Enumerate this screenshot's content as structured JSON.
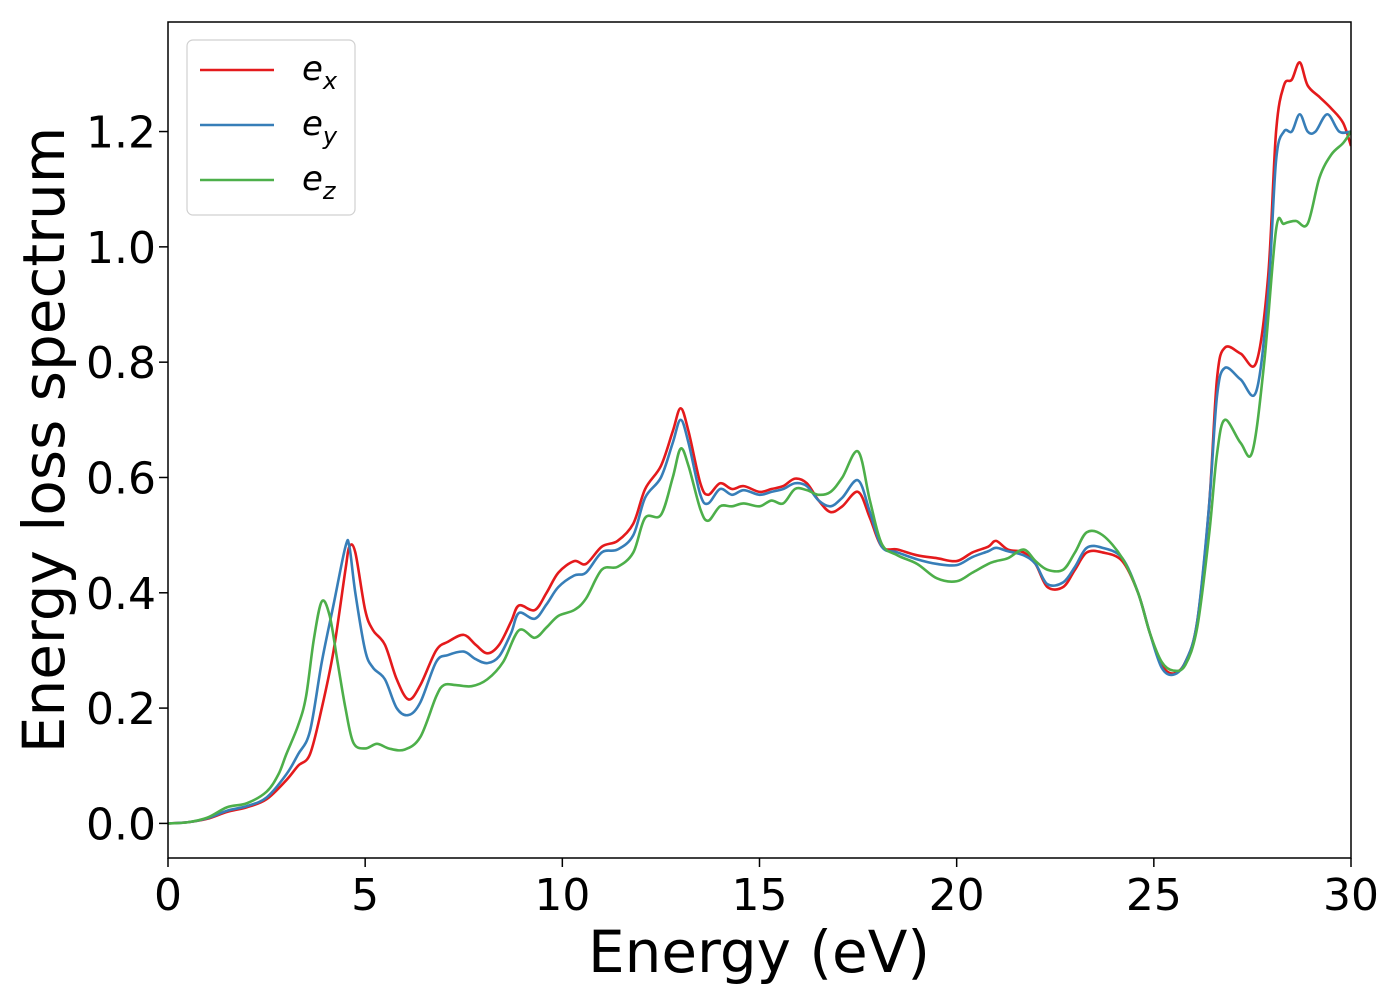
{
  "chart_data": {
    "type": "line",
    "xlabel": "Energy (eV)",
    "ylabel": "Energy loss spectrum",
    "xlim": [
      0,
      30
    ],
    "ylim": [
      -0.06,
      1.39
    ],
    "xticks": [
      0,
      5,
      10,
      15,
      20,
      25,
      30
    ],
    "xtick_labels": [
      "0",
      "5",
      "10",
      "15",
      "20",
      "25",
      "30"
    ],
    "yticks": [
      0.0,
      0.2,
      0.4,
      0.6,
      0.8,
      1.0,
      1.2
    ],
    "ytick_labels": [
      "0.0",
      "0.2",
      "0.4",
      "0.6",
      "0.8",
      "1.0",
      "1.2"
    ],
    "grid": false,
    "legend_position": "top-left",
    "series": [
      {
        "name": "e",
        "subscript": "x",
        "color": "#e41a1c",
        "points": [
          [
            0,
            0.0
          ],
          [
            0.5,
            0.002
          ],
          [
            1.0,
            0.008
          ],
          [
            1.5,
            0.02
          ],
          [
            2.0,
            0.028
          ],
          [
            2.5,
            0.042
          ],
          [
            3.0,
            0.075
          ],
          [
            3.3,
            0.1
          ],
          [
            3.6,
            0.12
          ],
          [
            3.9,
            0.2
          ],
          [
            4.2,
            0.3
          ],
          [
            4.5,
            0.44
          ],
          [
            4.6,
            0.48
          ],
          [
            4.75,
            0.47
          ],
          [
            5.0,
            0.37
          ],
          [
            5.2,
            0.335
          ],
          [
            5.5,
            0.31
          ],
          [
            5.8,
            0.25
          ],
          [
            6.1,
            0.215
          ],
          [
            6.4,
            0.24
          ],
          [
            6.8,
            0.3
          ],
          [
            7.1,
            0.315
          ],
          [
            7.5,
            0.327
          ],
          [
            7.8,
            0.31
          ],
          [
            8.1,
            0.295
          ],
          [
            8.4,
            0.31
          ],
          [
            8.7,
            0.35
          ],
          [
            8.9,
            0.378
          ],
          [
            9.3,
            0.37
          ],
          [
            9.6,
            0.4
          ],
          [
            9.9,
            0.435
          ],
          [
            10.3,
            0.455
          ],
          [
            10.6,
            0.45
          ],
          [
            11.0,
            0.48
          ],
          [
            11.4,
            0.49
          ],
          [
            11.8,
            0.52
          ],
          [
            12.1,
            0.58
          ],
          [
            12.5,
            0.62
          ],
          [
            12.8,
            0.68
          ],
          [
            13.0,
            0.72
          ],
          [
            13.2,
            0.68
          ],
          [
            13.5,
            0.59
          ],
          [
            13.7,
            0.57
          ],
          [
            14.0,
            0.59
          ],
          [
            14.3,
            0.58
          ],
          [
            14.6,
            0.585
          ],
          [
            15.0,
            0.575
          ],
          [
            15.3,
            0.58
          ],
          [
            15.6,
            0.585
          ],
          [
            15.9,
            0.598
          ],
          [
            16.2,
            0.59
          ],
          [
            16.5,
            0.56
          ],
          [
            16.8,
            0.54
          ],
          [
            17.1,
            0.55
          ],
          [
            17.5,
            0.575
          ],
          [
            17.8,
            0.53
          ],
          [
            18.1,
            0.48
          ],
          [
            18.5,
            0.475
          ],
          [
            19.0,
            0.465
          ],
          [
            19.5,
            0.46
          ],
          [
            20.0,
            0.455
          ],
          [
            20.4,
            0.47
          ],
          [
            20.8,
            0.48
          ],
          [
            21.0,
            0.49
          ],
          [
            21.3,
            0.475
          ],
          [
            21.7,
            0.47
          ],
          [
            22.0,
            0.45
          ],
          [
            22.3,
            0.41
          ],
          [
            22.7,
            0.41
          ],
          [
            23.0,
            0.44
          ],
          [
            23.3,
            0.47
          ],
          [
            23.7,
            0.47
          ],
          [
            24.2,
            0.455
          ],
          [
            24.6,
            0.4
          ],
          [
            24.9,
            0.33
          ],
          [
            25.2,
            0.275
          ],
          [
            25.5,
            0.26
          ],
          [
            25.8,
            0.28
          ],
          [
            26.1,
            0.35
          ],
          [
            26.4,
            0.55
          ],
          [
            26.6,
            0.77
          ],
          [
            26.8,
            0.825
          ],
          [
            27.2,
            0.815
          ],
          [
            27.6,
            0.8
          ],
          [
            27.9,
            0.95
          ],
          [
            28.1,
            1.2
          ],
          [
            28.3,
            1.28
          ],
          [
            28.5,
            1.29
          ],
          [
            28.7,
            1.32
          ],
          [
            28.9,
            1.28
          ],
          [
            29.2,
            1.26
          ],
          [
            29.5,
            1.24
          ],
          [
            29.8,
            1.215
          ],
          [
            30.0,
            1.175
          ]
        ]
      },
      {
        "name": "e",
        "subscript": "y",
        "color": "#377eb8",
        "points": [
          [
            0,
            0.0
          ],
          [
            0.5,
            0.002
          ],
          [
            1.0,
            0.009
          ],
          [
            1.5,
            0.022
          ],
          [
            2.0,
            0.03
          ],
          [
            2.5,
            0.045
          ],
          [
            3.0,
            0.085
          ],
          [
            3.3,
            0.12
          ],
          [
            3.6,
            0.16
          ],
          [
            3.9,
            0.28
          ],
          [
            4.2,
            0.38
          ],
          [
            4.5,
            0.48
          ],
          [
            4.6,
            0.48
          ],
          [
            4.75,
            0.4
          ],
          [
            5.0,
            0.3
          ],
          [
            5.2,
            0.27
          ],
          [
            5.5,
            0.25
          ],
          [
            5.8,
            0.2
          ],
          [
            6.1,
            0.188
          ],
          [
            6.4,
            0.21
          ],
          [
            6.8,
            0.28
          ],
          [
            7.1,
            0.292
          ],
          [
            7.5,
            0.298
          ],
          [
            7.8,
            0.285
          ],
          [
            8.1,
            0.278
          ],
          [
            8.4,
            0.29
          ],
          [
            8.7,
            0.33
          ],
          [
            8.9,
            0.365
          ],
          [
            9.3,
            0.355
          ],
          [
            9.6,
            0.38
          ],
          [
            9.9,
            0.41
          ],
          [
            10.3,
            0.43
          ],
          [
            10.6,
            0.435
          ],
          [
            11.0,
            0.47
          ],
          [
            11.4,
            0.475
          ],
          [
            11.8,
            0.5
          ],
          [
            12.1,
            0.565
          ],
          [
            12.5,
            0.6
          ],
          [
            12.8,
            0.66
          ],
          [
            13.0,
            0.7
          ],
          [
            13.2,
            0.66
          ],
          [
            13.5,
            0.57
          ],
          [
            13.7,
            0.555
          ],
          [
            14.0,
            0.58
          ],
          [
            14.3,
            0.57
          ],
          [
            14.6,
            0.578
          ],
          [
            15.0,
            0.57
          ],
          [
            15.3,
            0.575
          ],
          [
            15.6,
            0.58
          ],
          [
            15.9,
            0.59
          ],
          [
            16.2,
            0.585
          ],
          [
            16.5,
            0.56
          ],
          [
            16.8,
            0.55
          ],
          [
            17.1,
            0.565
          ],
          [
            17.5,
            0.595
          ],
          [
            17.8,
            0.54
          ],
          [
            18.1,
            0.48
          ],
          [
            18.5,
            0.47
          ],
          [
            19.0,
            0.458
          ],
          [
            19.5,
            0.45
          ],
          [
            20.0,
            0.448
          ],
          [
            20.4,
            0.462
          ],
          [
            20.8,
            0.472
          ],
          [
            21.0,
            0.478
          ],
          [
            21.3,
            0.472
          ],
          [
            21.7,
            0.465
          ],
          [
            22.0,
            0.45
          ],
          [
            22.3,
            0.415
          ],
          [
            22.7,
            0.418
          ],
          [
            23.0,
            0.445
          ],
          [
            23.3,
            0.478
          ],
          [
            23.7,
            0.478
          ],
          [
            24.2,
            0.46
          ],
          [
            24.6,
            0.4
          ],
          [
            24.9,
            0.33
          ],
          [
            25.2,
            0.27
          ],
          [
            25.5,
            0.258
          ],
          [
            25.8,
            0.28
          ],
          [
            26.1,
            0.35
          ],
          [
            26.4,
            0.55
          ],
          [
            26.6,
            0.74
          ],
          [
            26.8,
            0.79
          ],
          [
            27.2,
            0.77
          ],
          [
            27.6,
            0.75
          ],
          [
            27.9,
            0.92
          ],
          [
            28.1,
            1.15
          ],
          [
            28.3,
            1.2
          ],
          [
            28.5,
            1.2
          ],
          [
            28.7,
            1.23
          ],
          [
            28.9,
            1.2
          ],
          [
            29.1,
            1.2
          ],
          [
            29.4,
            1.23
          ],
          [
            29.7,
            1.2
          ],
          [
            30.0,
            1.2
          ]
        ]
      },
      {
        "name": "e",
        "subscript": "z",
        "color": "#4daf4a",
        "points": [
          [
            0,
            0.0
          ],
          [
            0.5,
            0.002
          ],
          [
            1.0,
            0.01
          ],
          [
            1.5,
            0.028
          ],
          [
            2.0,
            0.035
          ],
          [
            2.5,
            0.055
          ],
          [
            2.8,
            0.085
          ],
          [
            3.0,
            0.12
          ],
          [
            3.3,
            0.17
          ],
          [
            3.5,
            0.22
          ],
          [
            3.7,
            0.32
          ],
          [
            3.9,
            0.385
          ],
          [
            4.1,
            0.36
          ],
          [
            4.3,
            0.28
          ],
          [
            4.5,
            0.2
          ],
          [
            4.7,
            0.14
          ],
          [
            5.0,
            0.13
          ],
          [
            5.3,
            0.138
          ],
          [
            5.6,
            0.13
          ],
          [
            6.0,
            0.128
          ],
          [
            6.4,
            0.15
          ],
          [
            6.8,
            0.22
          ],
          [
            7.0,
            0.24
          ],
          [
            7.3,
            0.24
          ],
          [
            7.7,
            0.238
          ],
          [
            8.1,
            0.25
          ],
          [
            8.5,
            0.28
          ],
          [
            8.9,
            0.335
          ],
          [
            9.3,
            0.322
          ],
          [
            9.6,
            0.34
          ],
          [
            9.9,
            0.36
          ],
          [
            10.3,
            0.37
          ],
          [
            10.6,
            0.39
          ],
          [
            11.0,
            0.44
          ],
          [
            11.4,
            0.445
          ],
          [
            11.8,
            0.47
          ],
          [
            12.1,
            0.53
          ],
          [
            12.5,
            0.535
          ],
          [
            12.8,
            0.6
          ],
          [
            13.0,
            0.65
          ],
          [
            13.2,
            0.62
          ],
          [
            13.5,
            0.545
          ],
          [
            13.7,
            0.525
          ],
          [
            14.0,
            0.55
          ],
          [
            14.3,
            0.55
          ],
          [
            14.6,
            0.555
          ],
          [
            15.0,
            0.55
          ],
          [
            15.3,
            0.56
          ],
          [
            15.6,
            0.555
          ],
          [
            15.9,
            0.58
          ],
          [
            16.2,
            0.578
          ],
          [
            16.5,
            0.57
          ],
          [
            16.8,
            0.575
          ],
          [
            17.1,
            0.6
          ],
          [
            17.5,
            0.645
          ],
          [
            17.8,
            0.56
          ],
          [
            18.1,
            0.485
          ],
          [
            18.5,
            0.465
          ],
          [
            19.0,
            0.45
          ],
          [
            19.5,
            0.425
          ],
          [
            20.0,
            0.42
          ],
          [
            20.4,
            0.435
          ],
          [
            20.8,
            0.45
          ],
          [
            21.0,
            0.455
          ],
          [
            21.3,
            0.46
          ],
          [
            21.7,
            0.475
          ],
          [
            22.0,
            0.455
          ],
          [
            22.3,
            0.44
          ],
          [
            22.7,
            0.44
          ],
          [
            23.0,
            0.47
          ],
          [
            23.3,
            0.505
          ],
          [
            23.7,
            0.5
          ],
          [
            24.2,
            0.46
          ],
          [
            24.6,
            0.4
          ],
          [
            24.9,
            0.33
          ],
          [
            25.2,
            0.28
          ],
          [
            25.5,
            0.265
          ],
          [
            25.8,
            0.275
          ],
          [
            26.1,
            0.34
          ],
          [
            26.4,
            0.5
          ],
          [
            26.6,
            0.64
          ],
          [
            26.8,
            0.7
          ],
          [
            27.2,
            0.66
          ],
          [
            27.5,
            0.645
          ],
          [
            27.8,
            0.8
          ],
          [
            28.1,
            1.03
          ],
          [
            28.3,
            1.04
          ],
          [
            28.6,
            1.045
          ],
          [
            28.9,
            1.04
          ],
          [
            29.2,
            1.12
          ],
          [
            29.5,
            1.16
          ],
          [
            29.8,
            1.18
          ],
          [
            30.0,
            1.2
          ]
        ]
      }
    ]
  }
}
